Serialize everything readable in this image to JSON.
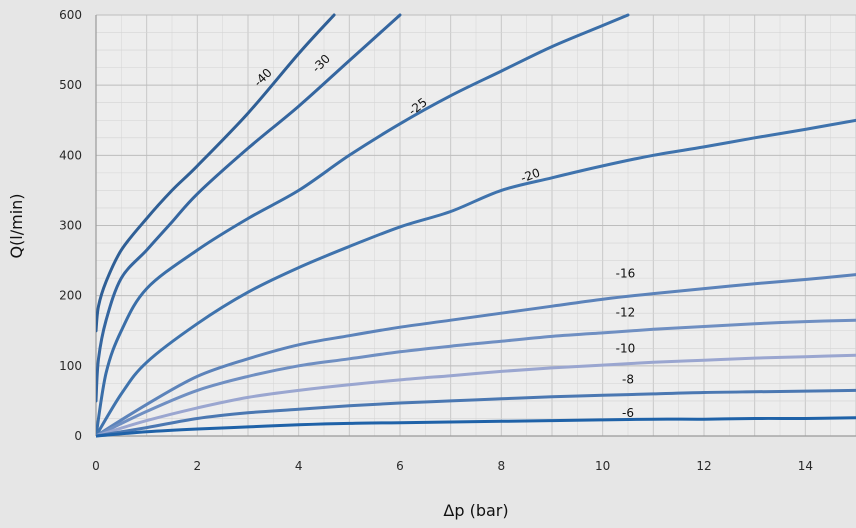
{
  "chart_data": {
    "type": "line",
    "title": "",
    "xlabel": "Δp (bar)",
    "ylabel": "Q(l/min)",
    "xlim": [
      0,
      15
    ],
    "ylim": [
      0,
      600
    ],
    "x_ticks": [
      "0",
      "2",
      "4",
      "6",
      "8",
      "10",
      "12",
      "14"
    ],
    "y_ticks": [
      "0",
      "100",
      "200",
      "300",
      "400",
      "500",
      "600"
    ],
    "grid": true,
    "legend": "none",
    "series": [
      {
        "name": "-40",
        "color": "#2f5f96",
        "x": [
          0,
          0.05,
          0.2,
          0.5,
          1,
          1.5,
          2,
          3,
          4,
          4.7
        ],
        "y": [
          150,
          185,
          220,
          265,
          310,
          350,
          385,
          460,
          545,
          600
        ]
      },
      {
        "name": "-30",
        "color": "#3566a0",
        "x": [
          0,
          0.05,
          0.2,
          0.5,
          1,
          1.5,
          2,
          3,
          4,
          5,
          6
        ],
        "y": [
          50,
          110,
          165,
          225,
          265,
          305,
          345,
          410,
          470,
          535,
          600
        ]
      },
      {
        "name": "-25",
        "color": "#3a6ea8",
        "x": [
          0,
          0.2,
          0.5,
          1,
          2,
          3,
          4,
          5,
          6,
          7,
          8,
          9,
          10,
          10.5
        ],
        "y": [
          0,
          90,
          150,
          210,
          265,
          310,
          350,
          400,
          445,
          485,
          520,
          555,
          585,
          600
        ]
      },
      {
        "name": "-20",
        "color": "#3f73ad",
        "x": [
          0,
          0.5,
          1,
          2,
          3,
          4,
          5,
          6,
          7,
          8,
          9,
          10,
          11,
          12,
          13,
          14,
          15
        ],
        "y": [
          0,
          60,
          105,
          160,
          205,
          240,
          270,
          298,
          320,
          350,
          368,
          385,
          400,
          412,
          425,
          437,
          450
        ]
      },
      {
        "name": "-16",
        "color": "#5c83ba",
        "x": [
          0,
          1,
          2,
          3,
          4,
          5,
          6,
          7,
          8,
          9,
          10,
          11,
          12,
          13,
          14,
          15
        ],
        "y": [
          0,
          45,
          85,
          110,
          130,
          143,
          155,
          165,
          175,
          185,
          195,
          203,
          210,
          217,
          223,
          230
        ]
      },
      {
        "name": "-12",
        "color": "#6f8fc2",
        "x": [
          0,
          1,
          2,
          3,
          4,
          5,
          6,
          7,
          8,
          9,
          10,
          11,
          12,
          13,
          14,
          15
        ],
        "y": [
          0,
          35,
          65,
          85,
          100,
          110,
          120,
          128,
          135,
          142,
          147,
          152,
          156,
          160,
          163,
          165
        ]
      },
      {
        "name": "-10",
        "color": "#9aa6d0",
        "x": [
          0,
          1,
          2,
          3,
          4,
          5,
          6,
          7,
          8,
          9,
          10,
          11,
          12,
          13,
          14,
          15
        ],
        "y": [
          0,
          22,
          40,
          55,
          65,
          73,
          80,
          86,
          92,
          97,
          101,
          105,
          108,
          111,
          113,
          115
        ]
      },
      {
        "name": "-8",
        "color": "#4b78b2",
        "x": [
          0,
          1,
          2,
          3,
          4,
          5,
          6,
          7,
          8,
          9,
          10,
          11,
          12,
          13,
          14,
          15
        ],
        "y": [
          0,
          12,
          25,
          33,
          38,
          43,
          47,
          50,
          53,
          56,
          58,
          60,
          62,
          63,
          64,
          65
        ]
      },
      {
        "name": "-6",
        "color": "#1f62a8",
        "x": [
          0,
          1,
          2,
          3,
          4,
          5,
          6,
          7,
          8,
          9,
          10,
          11,
          12,
          13,
          14,
          15
        ],
        "y": [
          0,
          6,
          10,
          13,
          16,
          18,
          19,
          20,
          21,
          22,
          23,
          24,
          24,
          25,
          25,
          26
        ]
      }
    ],
    "curve_labels": [
      {
        "text": "-40",
        "x": 3.35,
        "y": 507,
        "angle": -45
      },
      {
        "text": "-30",
        "x": 4.5,
        "y": 527,
        "angle": -45
      },
      {
        "text": "-25",
        "x": 6.4,
        "y": 465,
        "angle": -38
      },
      {
        "text": "-20",
        "x": 8.6,
        "y": 366,
        "angle": -20
      },
      {
        "text": "-16",
        "x": 10.45,
        "y": 226,
        "angle": 0
      },
      {
        "text": "-12",
        "x": 10.45,
        "y": 170,
        "angle": 0
      },
      {
        "text": "-10",
        "x": 10.45,
        "y": 119,
        "angle": 0
      },
      {
        "text": "-8",
        "x": 10.5,
        "y": 75,
        "angle": 0
      },
      {
        "text": "-6",
        "x": 10.5,
        "y": 27,
        "angle": 0
      }
    ]
  }
}
